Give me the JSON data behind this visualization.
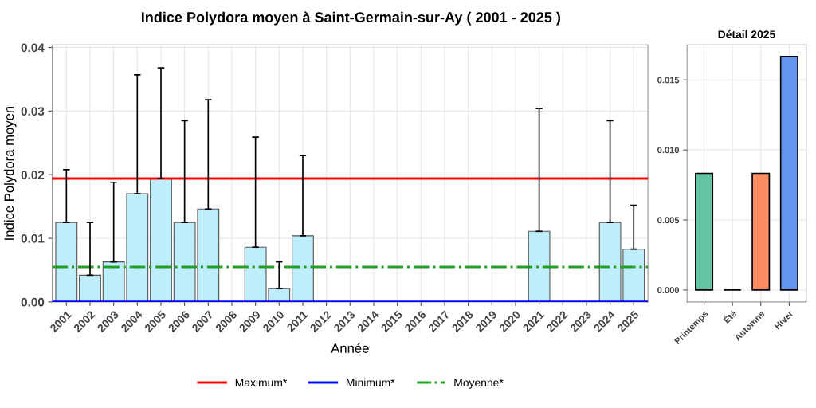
{
  "chart_data": [
    {
      "type": "bar",
      "title": "Indice Polydora moyen à Saint-Germain-sur-Ay ( 2001 - 2025 )",
      "xlabel": "Année",
      "ylabel": "Indice Polydora moyen",
      "categories": [
        "2001",
        "2002",
        "2003",
        "2004",
        "2005",
        "2006",
        "2007",
        "2008",
        "2009",
        "2010",
        "2011",
        "2012",
        "2013",
        "2014",
        "2015",
        "2016",
        "2017",
        "2018",
        "2019",
        "2020",
        "2021",
        "2022",
        "2023",
        "2024",
        "2025"
      ],
      "values": [
        0.0125,
        0.0042,
        0.0063,
        0.017,
        0.0194,
        0.0125,
        0.0146,
        null,
        0.0086,
        0.0021,
        0.0104,
        null,
        null,
        null,
        null,
        null,
        null,
        null,
        null,
        null,
        0.0111,
        null,
        null,
        0.0125,
        0.0083
      ],
      "errors": [
        [
          0.0125,
          0.0208
        ],
        [
          0.0042,
          0.0125
        ],
        [
          0.0063,
          0.0188
        ],
        [
          0.017,
          0.0357
        ],
        [
          0.0194,
          0.0368
        ],
        [
          0.0125,
          0.0285
        ],
        [
          0.0146,
          0.0318
        ],
        null,
        [
          0.0086,
          0.0259
        ],
        [
          0.0021,
          0.0063
        ],
        [
          0.0104,
          0.023
        ],
        null,
        null,
        null,
        null,
        null,
        null,
        null,
        null,
        null,
        [
          0.0111,
          0.0304
        ],
        null,
        null,
        [
          0.0125,
          0.0285
        ],
        [
          0.0083,
          0.0152
        ]
      ],
      "color": "#bfeefb",
      "ylim": [
        0,
        0.0404
      ],
      "yticks": [
        {
          "value": 0,
          "label": "0.00"
        },
        {
          "value": 0.01,
          "label": "0.01"
        },
        {
          "value": 0.02,
          "label": "0.02"
        },
        {
          "value": 0.03,
          "label": "0.03"
        },
        {
          "value": 0.04,
          "label": "0.04"
        }
      ],
      "ref_lines": [
        {
          "axis": "y",
          "value": 0.0194,
          "label": "Maximum*",
          "color": "#ff0000",
          "line_style": "solid"
        },
        {
          "axis": "y",
          "value": 0,
          "label": "Minimum*",
          "color": "#0000ff",
          "line_style": "solid"
        },
        {
          "axis": "y",
          "value": 0.0055,
          "label": "Moyenne*",
          "color": "#22a022",
          "line_style": "dashdot"
        }
      ],
      "grid": true,
      "legend": "bottom"
    },
    {
      "type": "bar",
      "title": "Détail 2025",
      "categories": [
        "Printemps",
        "Été",
        "Automne",
        "Hiver"
      ],
      "values": [
        0.00833,
        0,
        0.00833,
        0.01667
      ],
      "colors": [
        "#66c2a5",
        "#000000",
        "#fc8d62",
        "#6495ed"
      ],
      "ylim": [
        -0.00085,
        0.0175
      ],
      "yticks": [
        {
          "value": 0,
          "label": "0.000"
        },
        {
          "value": 0.005,
          "label": "0.005"
        },
        {
          "value": 0.01,
          "label": "0.010"
        },
        {
          "value": 0.015,
          "label": "0.015"
        }
      ],
      "grid": true
    }
  ]
}
